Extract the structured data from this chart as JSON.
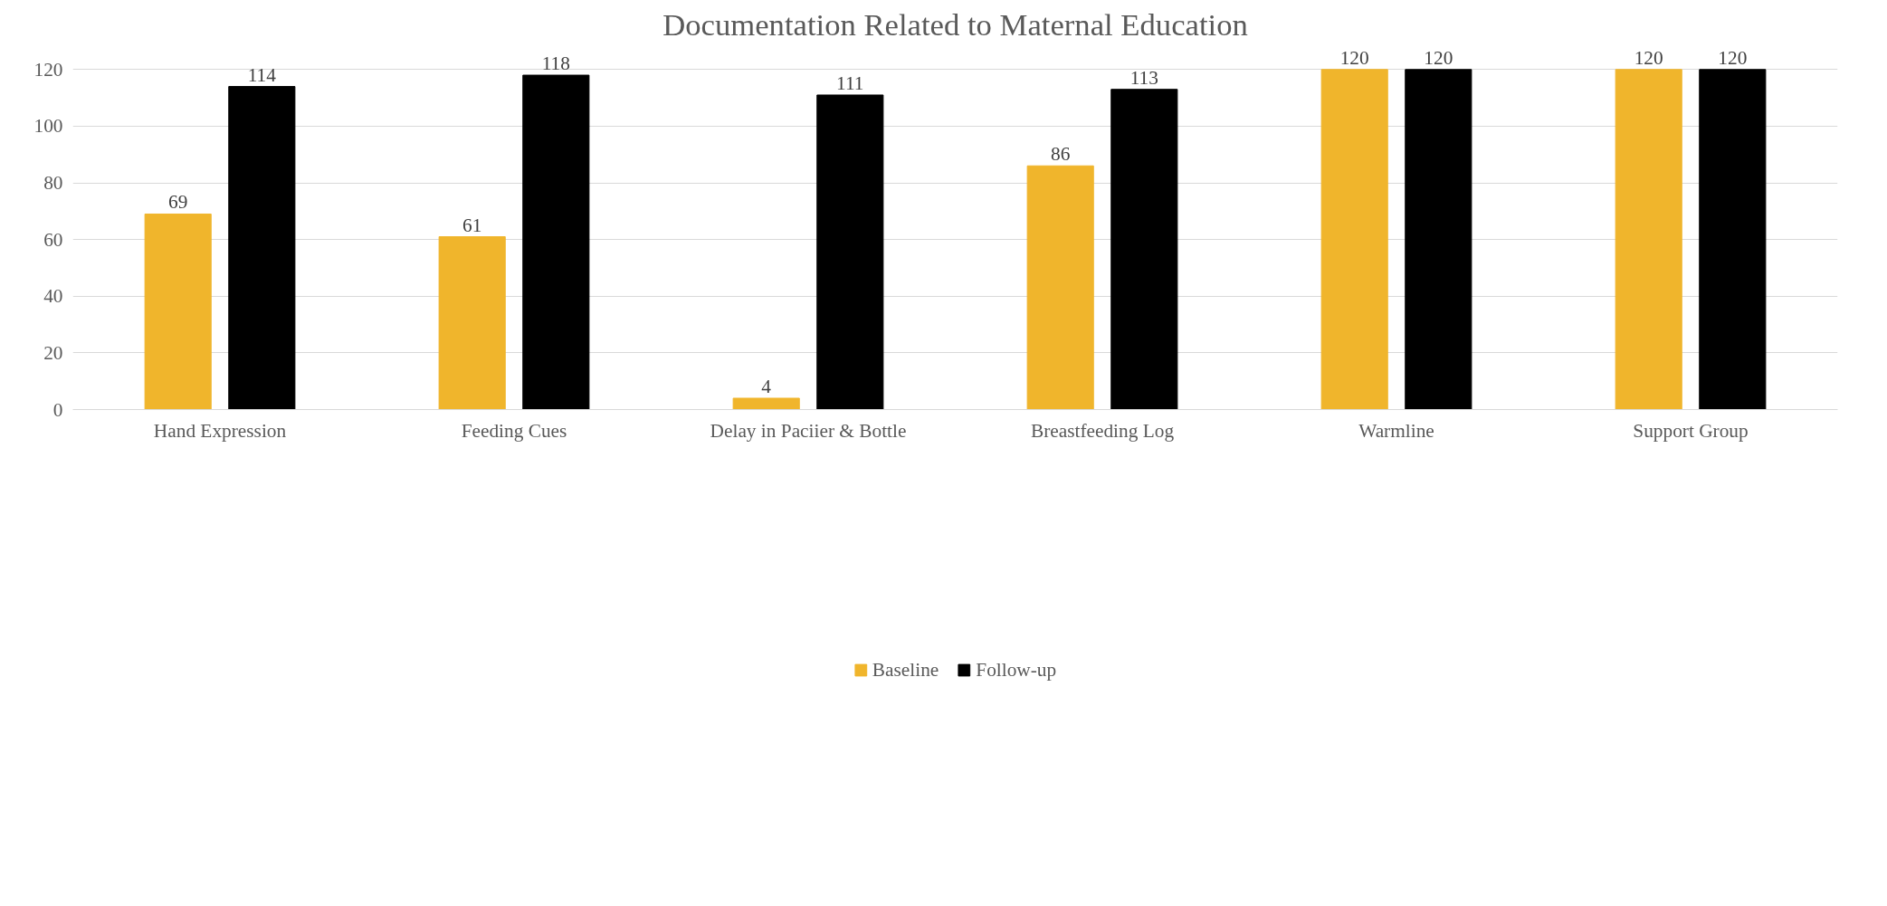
{
  "chart_data": {
    "type": "bar",
    "title": "Documentation Related to Maternal Education",
    "categories": [
      "Hand Expression",
      "Feeding Cues",
      "Delay in Paciier & Bottle",
      "Breastfeeding Log",
      "Warmline",
      "Support Group"
    ],
    "series": [
      {
        "name": "Baseline",
        "color": "#f0b52c",
        "values": [
          69,
          61,
          4,
          86,
          120,
          120
        ]
      },
      {
        "name": "Follow-up",
        "color": "#000000",
        "values": [
          114,
          118,
          111,
          113,
          120,
          120
        ]
      }
    ],
    "ylim": [
      0,
      120
    ],
    "yticks": [
      0,
      20,
      40,
      60,
      80,
      100,
      120
    ],
    "grid": "y",
    "legend": "bottom",
    "data_labels": true
  }
}
